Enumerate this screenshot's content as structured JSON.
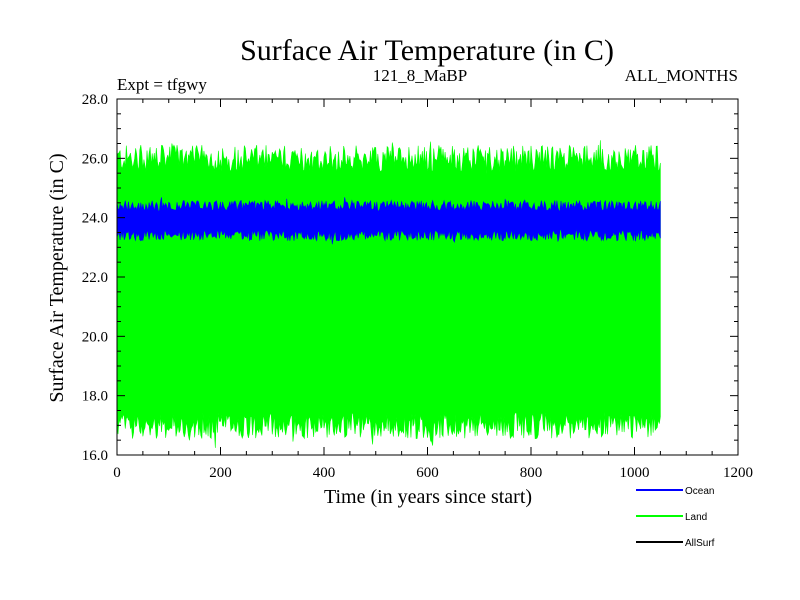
{
  "chart_data": {
    "type": "area",
    "title": "Surface Air Temperature (in C)",
    "experiment": "Expt = tfgwy",
    "subtitle": "121_8_MaBP",
    "period": "ALL_MONTHS",
    "xlabel": "Time (in years since start)",
    "ylabel": "Surface Air Temperature (in C)",
    "xlim": [
      0,
      1200
    ],
    "ylim": [
      16.0,
      28.0
    ],
    "x_ticks": [
      0,
      200,
      400,
      600,
      800,
      1000,
      1200
    ],
    "x_tick_labels": [
      "0",
      "200",
      "400",
      "600",
      "800",
      "1000",
      "1200"
    ],
    "y_ticks": [
      16,
      18,
      20,
      22,
      24,
      26,
      28
    ],
    "y_tick_labels": [
      "16.0",
      "18.0",
      "20.0",
      "22.0",
      "24.0",
      "26.0",
      "28.0"
    ],
    "x_data_range": [
      0,
      1050
    ],
    "series": [
      {
        "name": "Land",
        "color": "#00ff00",
        "low": 17.0,
        "high": 26.0,
        "noise": 0.45
      },
      {
        "name": "Ocean",
        "color": "#0000ff",
        "low": 23.4,
        "high": 24.4,
        "noise": 0.18
      },
      {
        "name": "AllSurf",
        "color": "#000000",
        "low": null,
        "high": null,
        "noise": 0
      }
    ],
    "legend_position": "bottom-right",
    "legend": [
      {
        "name": "Ocean",
        "color": "#0000ff"
      },
      {
        "name": "Land",
        "color": "#00ff00"
      },
      {
        "name": "AllSurf",
        "color": "#000000"
      }
    ]
  }
}
